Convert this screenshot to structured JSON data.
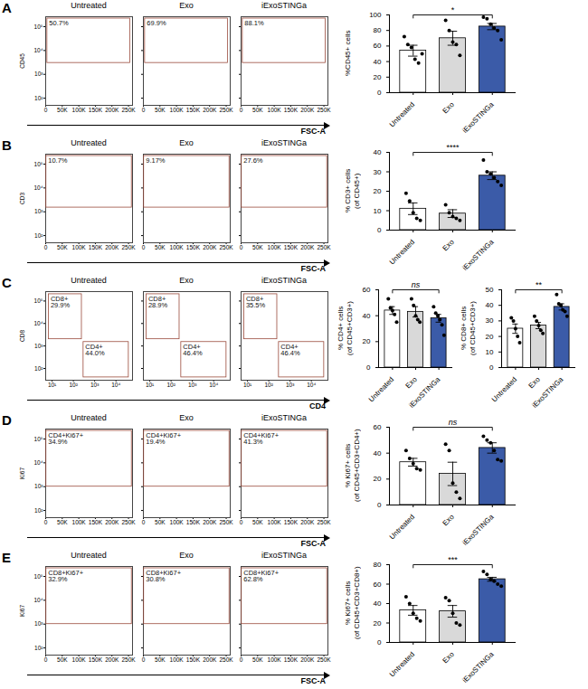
{
  "chart_data": [
    {
      "type": "flow",
      "panel": "A",
      "ylabel": "CD45",
      "xlabel": "FSC-A",
      "log": "y",
      "xlim": [
        0,
        262144
      ],
      "xticks": [
        0,
        {
          "value": 50000,
          "label": "50K"
        },
        {
          "value": 100000,
          "label": "100K"
        },
        {
          "value": 150000,
          "label": "150K"
        },
        {
          "value": 200000,
          "label": "200K"
        },
        {
          "value": 250000,
          "label": "250K"
        }
      ],
      "ylim": [
        50,
        262144
      ],
      "yticks": [
        {
          "value": 100,
          "label": "10²"
        },
        {
          "value": 1000,
          "label": "10³"
        },
        {
          "value": 10000,
          "label": "10⁴"
        },
        {
          "value": 100000,
          "label": "10⁵"
        }
      ],
      "panels": [
        {
          "title": "Untreated",
          "gates": [
            {
              "text": [
                "50.7%"
              ],
              "x1": 5000,
              "x2": 255000,
              "y1": 3000,
              "y2": 220000
            }
          ]
        },
        {
          "title": "Exo",
          "gates": [
            {
              "text": [
                "69.9%"
              ],
              "x1": 5000,
              "x2": 255000,
              "y1": 3000,
              "y2": 220000
            }
          ]
        },
        {
          "title": "iExoSTINGa",
          "gates": [
            {
              "text": [
                "88.1%"
              ],
              "x1": 5000,
              "x2": 255000,
              "y1": 3000,
              "y2": 220000
            }
          ]
        }
      ]
    },
    {
      "type": "bar",
      "panel": "A",
      "ylabel": [
        "%CD45+ cells"
      ],
      "categories": [
        "Untreated",
        "Exo",
        "iExoSTINGa"
      ],
      "values": [
        54,
        70,
        85
      ],
      "errors": [
        7,
        9,
        4
      ],
      "points": [
        [
          72,
          62,
          58,
          43,
          38,
          50
        ],
        [
          93,
          80,
          65,
          62,
          48
        ],
        [
          97,
          95,
          88,
          83,
          80,
          68
        ]
      ],
      "colors": [
        "#ffffff",
        "#d9d9d9",
        "#3b5ba8"
      ],
      "ylim": [
        0,
        100
      ],
      "yticks": [
        0,
        20,
        40,
        60,
        80,
        100
      ],
      "significance": {
        "from": "Untreated",
        "to": "iExoSTINGa",
        "label": "*"
      }
    },
    {
      "type": "flow",
      "panel": "B",
      "ylabel": "CD3",
      "xlabel": "FSC-A",
      "log": "y",
      "xlim": [
        0,
        262144
      ],
      "xticks": [
        0,
        {
          "value": 50000,
          "label": "50K"
        },
        {
          "value": 100000,
          "label": "100K"
        },
        {
          "value": 150000,
          "label": "150K"
        },
        {
          "value": 200000,
          "label": "200K"
        },
        {
          "value": 250000,
          "label": "250K"
        }
      ],
      "ylim": [
        50,
        262144
      ],
      "yticks": [
        {
          "value": 100,
          "label": "10²"
        },
        {
          "value": 1000,
          "label": "10³"
        },
        {
          "value": 10000,
          "label": "10⁴"
        },
        {
          "value": 100000,
          "label": "10⁵"
        }
      ],
      "panels": [
        {
          "title": "Untreated",
          "gates": [
            {
              "text": [
                "10.7%"
              ],
              "x1": 2000,
              "x2": 260000,
              "y1": 1500,
              "y2": 220000
            }
          ]
        },
        {
          "title": "Exo",
          "gates": [
            {
              "text": [
                "9.17%"
              ],
              "x1": 2000,
              "x2": 260000,
              "y1": 1500,
              "y2": 220000
            }
          ]
        },
        {
          "title": "iExoSTINGa",
          "gates": [
            {
              "text": [
                "27.6%"
              ],
              "x1": 2000,
              "x2": 260000,
              "y1": 1500,
              "y2": 220000
            }
          ]
        }
      ]
    },
    {
      "type": "bar",
      "panel": "B",
      "ylabel": [
        "% CD3+ cells",
        "(of CD45+)"
      ],
      "categories": [
        "Untreated",
        "Exo",
        "iExoSTINGa"
      ],
      "values": [
        11,
        8.5,
        28
      ],
      "errors": [
        3,
        2,
        2
      ],
      "points": [
        [
          19,
          15,
          9,
          6,
          5
        ],
        [
          13,
          9,
          7,
          6,
          5
        ],
        [
          36,
          30,
          29,
          27,
          25,
          23
        ]
      ],
      "colors": [
        "#ffffff",
        "#d9d9d9",
        "#3b5ba8"
      ],
      "ylim": [
        0,
        40
      ],
      "yticks": [
        0,
        10,
        20,
        30,
        40
      ],
      "significance": {
        "from": "Untreated",
        "to": "iExoSTINGa",
        "label": "****"
      }
    },
    {
      "type": "flow",
      "panel": "C",
      "ylabel": "CD8",
      "xlabel": "CD4",
      "log": true,
      "xlim": [
        5,
        60000
      ],
      "xticks": [
        {
          "value": 10,
          "label": "10¹"
        },
        {
          "value": 100,
          "label": "10²"
        },
        {
          "value": 1000,
          "label": "10³"
        },
        {
          "value": 10000,
          "label": "10⁴"
        }
      ],
      "ylim": [
        30,
        262144
      ],
      "yticks": [
        {
          "value": 100,
          "label": "10²"
        },
        {
          "value": 1000,
          "label": "10³"
        },
        {
          "value": 10000,
          "label": "10⁴"
        },
        {
          "value": 100000,
          "label": "10⁵"
        }
      ],
      "panels": [
        {
          "title": "Untreated",
          "gates": [
            {
              "text": [
                "CD8+",
                "29.9%"
              ],
              "x1": 7,
              "x2": 250,
              "y1": 2000,
              "y2": 200000
            },
            {
              "text": [
                "CD4+",
                "44.0%"
              ],
              "x1": 300,
              "x2": 40000,
              "y1": 40,
              "y2": 1500
            }
          ]
        },
        {
          "title": "Exo",
          "gates": [
            {
              "text": [
                "CD8+",
                "28.9%"
              ],
              "x1": 7,
              "x2": 250,
              "y1": 2000,
              "y2": 200000
            },
            {
              "text": [
                "CD4+",
                "46.4%"
              ],
              "x1": 300,
              "x2": 40000,
              "y1": 40,
              "y2": 1500
            }
          ]
        },
        {
          "title": "iExoSTINGa",
          "gates": [
            {
              "text": [
                "CD8+",
                "35.5%"
              ],
              "x1": 7,
              "x2": 250,
              "y1": 2000,
              "y2": 200000
            },
            {
              "text": [
                "CD4+",
                "46.4%"
              ],
              "x1": 300,
              "x2": 40000,
              "y1": 40,
              "y2": 1500
            }
          ]
        }
      ]
    },
    {
      "type": "bar",
      "panel": "C",
      "ylabel": [
        "% CD4+ cells",
        "(of CD45+CD3+)"
      ],
      "categories": [
        "Untreated",
        "Exo",
        "iExoSTINGa"
      ],
      "values": [
        44,
        43,
        38
      ],
      "errors": [
        3,
        4,
        3
      ],
      "points": [
        [
          53,
          46,
          44,
          41,
          35
        ],
        [
          53,
          48,
          40,
          37,
          35
        ],
        [
          47,
          42,
          40,
          37,
          33,
          25
        ]
      ],
      "colors": [
        "#ffffff",
        "#d9d9d9",
        "#3b5ba8"
      ],
      "ylim": [
        0,
        60
      ],
      "yticks": [
        0,
        20,
        40,
        60
      ],
      "significance": {
        "from": "Untreated",
        "to": "iExoSTINGa",
        "label": "ns"
      }
    },
    {
      "type": "bar",
      "panel": "C",
      "ylabel": [
        "% CD8+ cells",
        "(of CD45+CD3+)"
      ],
      "categories": [
        "Untreated",
        "Exo",
        "iExoSTINGa"
      ],
      "values": [
        25,
        27,
        39
      ],
      "errors": [
        3,
        2,
        2
      ],
      "points": [
        [
          32,
          30,
          25,
          20,
          16
        ],
        [
          33,
          30,
          27,
          24,
          22
        ],
        [
          47,
          41,
          40,
          37,
          36,
          33
        ]
      ],
      "colors": [
        "#ffffff",
        "#d9d9d9",
        "#3b5ba8"
      ],
      "ylim": [
        0,
        50
      ],
      "yticks": [
        0,
        10,
        20,
        30,
        40,
        50
      ],
      "significance": {
        "from": "Untreated",
        "to": "iExoSTINGa",
        "label": "**"
      }
    },
    {
      "type": "flow",
      "panel": "D",
      "ylabel": "Ki67",
      "xlabel": "FSC-A",
      "log": "y",
      "xlim": [
        0,
        262144
      ],
      "xticks": [
        0,
        {
          "value": 50000,
          "label": "50K"
        },
        {
          "value": 100000,
          "label": "100K"
        },
        {
          "value": 150000,
          "label": "150K"
        },
        {
          "value": 200000,
          "label": "200K"
        },
        {
          "value": 250000,
          "label": "250K"
        }
      ],
      "ylim": [
        50,
        262144
      ],
      "yticks": [
        {
          "value": 100,
          "label": "10²"
        },
        {
          "value": 1000,
          "label": "10³"
        },
        {
          "value": 10000,
          "label": "10⁴"
        },
        {
          "value": 100000,
          "label": "10⁵"
        }
      ],
      "panels": [
        {
          "title": "Untreated",
          "gates": [
            {
              "text": [
                "CD4+Ki67+",
                "34.9%"
              ],
              "x1": 2000,
              "x2": 260000,
              "y1": 1000,
              "y2": 220000
            }
          ]
        },
        {
          "title": "Exo",
          "gates": [
            {
              "text": [
                "CD4+Ki67+",
                "19.4%"
              ],
              "x1": 2000,
              "x2": 260000,
              "y1": 1000,
              "y2": 220000
            }
          ]
        },
        {
          "title": "iExoSTINGa",
          "gates": [
            {
              "text": [
                "CD4+Ki67+",
                "41.3%"
              ],
              "x1": 2000,
              "x2": 260000,
              "y1": 1000,
              "y2": 220000
            }
          ]
        }
      ]
    },
    {
      "type": "bar",
      "panel": "D",
      "ylabel": [
        "% Ki67+ cells",
        "(of CD45+CD3+CD4+)"
      ],
      "categories": [
        "Untreated",
        "Exo",
        "iExoSTINGa"
      ],
      "values": [
        33,
        24,
        44
      ],
      "errors": [
        3,
        9,
        4
      ],
      "points": [
        [
          42,
          36,
          32,
          28,
          27
        ],
        [
          47,
          42,
          17,
          10,
          5
        ],
        [
          53,
          50,
          48,
          42,
          35,
          34
        ]
      ],
      "colors": [
        "#ffffff",
        "#d9d9d9",
        "#3b5ba8"
      ],
      "ylim": [
        0,
        60
      ],
      "yticks": [
        0,
        20,
        40,
        60
      ],
      "significance": {
        "from": "Untreated",
        "to": "iExoSTINGa",
        "label": "ns"
      }
    },
    {
      "type": "flow",
      "panel": "E",
      "ylabel": "Ki67",
      "xlabel": "FSC-A",
      "log": "y",
      "xlim": [
        0,
        262144
      ],
      "xticks": [
        0,
        {
          "value": 50000,
          "label": "50K"
        },
        {
          "value": 100000,
          "label": "100K"
        },
        {
          "value": 150000,
          "label": "150K"
        },
        {
          "value": 200000,
          "label": "200K"
        },
        {
          "value": 250000,
          "label": "250K"
        }
      ],
      "ylim": [
        50,
        262144
      ],
      "yticks": [
        {
          "value": 100,
          "label": "10²"
        },
        {
          "value": 1000,
          "label": "10³"
        },
        {
          "value": 10000,
          "label": "10⁴"
        },
        {
          "value": 100000,
          "label": "10⁵"
        }
      ],
      "panels": [
        {
          "title": "Untreated",
          "gates": [
            {
              "text": [
                "CD8+Ki67+",
                "32.9%"
              ],
              "x1": 2000,
              "x2": 260000,
              "y1": 1000,
              "y2": 220000
            }
          ]
        },
        {
          "title": "Exo",
          "gates": [
            {
              "text": [
                "CD8+Ki67+",
                "30.8%"
              ],
              "x1": 2000,
              "x2": 260000,
              "y1": 1000,
              "y2": 220000
            }
          ]
        },
        {
          "title": "iExoSTINGa",
          "gates": [
            {
              "text": [
                "CD8+Ki67+",
                "62.8%"
              ],
              "x1": 2000,
              "x2": 260000,
              "y1": 1000,
              "y2": 220000
            }
          ]
        }
      ]
    },
    {
      "type": "bar",
      "panel": "E",
      "ylabel": [
        "% Ki67+ cells",
        "(of CD45+CD3+CD8+)"
      ],
      "categories": [
        "Untreated",
        "Exo",
        "iExoSTINGa"
      ],
      "values": [
        33,
        32,
        65
      ],
      "errors": [
        5,
        6,
        2
      ],
      "points": [
        [
          47,
          40,
          30,
          25,
          22
        ],
        [
          46,
          43,
          30,
          20,
          18
        ],
        [
          73,
          70,
          65,
          63,
          60,
          58
        ]
      ],
      "colors": [
        "#ffffff",
        "#d9d9d9",
        "#3b5ba8"
      ],
      "ylim": [
        0,
        80
      ],
      "yticks": [
        0,
        20,
        40,
        60,
        80
      ],
      "significance": {
        "from": "Untreated",
        "to": "iExoSTINGa",
        "label": "***"
      }
    }
  ]
}
